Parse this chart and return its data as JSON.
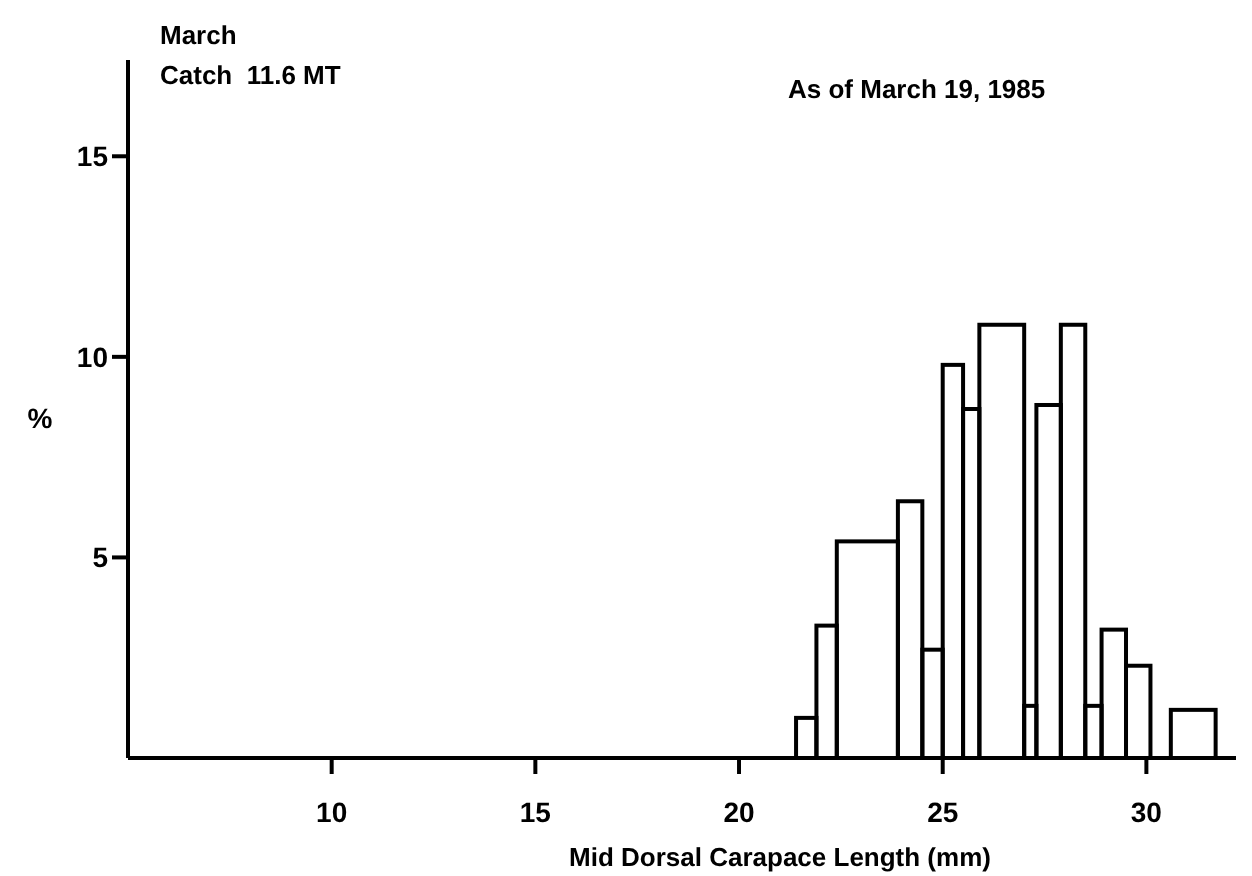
{
  "chart_data": {
    "type": "histogram",
    "xlabel": "Mid Dorsal Carapace Length (mm)",
    "ylabel": "%",
    "bins": [
      21.4,
      21.9,
      22.4,
      23.9,
      24.5,
      25,
      25.5,
      25.9,
      27,
      27.3,
      27.9,
      28.5,
      28.9,
      29.5,
      30.1,
      30.6,
      31.7
    ],
    "values": [
      1,
      3.3,
      5.4,
      6.4,
      2.7,
      9.8,
      8.7,
      10.8,
      1.3,
      8.8,
      10.8,
      1.3,
      3.2,
      2.3,
      0,
      1.2
    ],
    "color": "#000000",
    "xlim": [
      5,
      32.2
    ],
    "xticks": [
      10,
      15,
      20,
      25,
      30
    ],
    "ylim": [
      0,
      17.4
    ],
    "yticks": [
      5,
      10,
      15
    ],
    "annotations": [
      "March",
      "Catch  11.6 MT",
      "As of March 19, 1985"
    ]
  }
}
